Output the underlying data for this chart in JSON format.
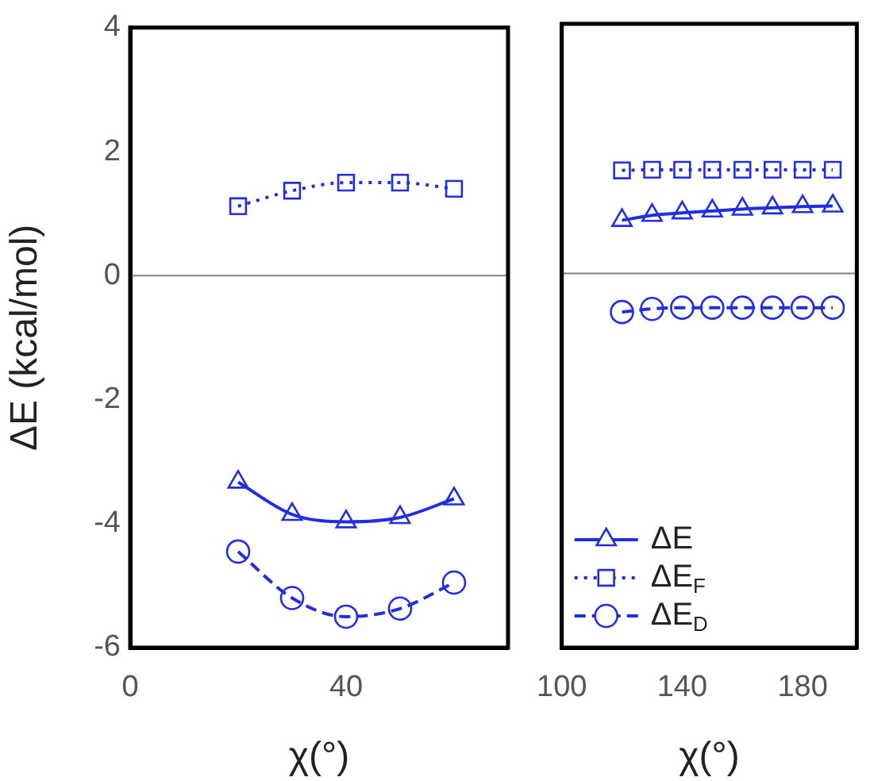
{
  "chart_data": [
    {
      "type": "line",
      "xlabel": "χ(°)",
      "ylabel": "ΔE (kcal/mol)",
      "x": [
        20,
        30,
        40,
        50,
        60
      ],
      "xlim": [
        0,
        70
      ],
      "xticks": [
        0,
        40
      ],
      "ylim": [
        -6,
        4
      ],
      "yticks": [
        -6,
        -4,
        -2,
        0,
        2,
        4
      ],
      "grid": false,
      "legend": false,
      "ref_lines": [
        {
          "axis": "y",
          "value": 0,
          "color": "#808080"
        }
      ],
      "series": [
        {
          "color": "#1f2ee0",
          "marker": "triangle",
          "line_style": "solid",
          "values": [
            -3.33,
            -3.85,
            -3.97,
            -3.9,
            -3.6
          ]
        },
        {
          "color": "#1f2ee0",
          "marker": "square",
          "line_style": "dotted",
          "values": [
            1.12,
            1.37,
            1.5,
            1.5,
            1.4
          ]
        },
        {
          "color": "#1f2ee0",
          "marker": "circle",
          "line_style": "dashed",
          "values": [
            -4.45,
            -5.2,
            -5.5,
            -5.37,
            -4.95
          ]
        }
      ]
    },
    {
      "type": "line",
      "xlabel": "χ(°)",
      "x": [
        120,
        130,
        140,
        150,
        160,
        170,
        180,
        190
      ],
      "xlim": [
        100,
        198
      ],
      "xticks": [
        100,
        140,
        180
      ],
      "ylim": [
        -6,
        4
      ],
      "yticks": [
        -6,
        -4,
        -2,
        0,
        2,
        4
      ],
      "tick_labels": "x",
      "grid": false,
      "legend": "bottom left",
      "ref_lines": [
        {
          "axis": "y",
          "value": 0,
          "color": "#808080"
        }
      ],
      "series": [
        {
          "name": "ΔE",
          "color": "#1f2ee0",
          "marker": "triangle",
          "line_style": "solid",
          "values": [
            0.85,
            0.93,
            0.97,
            1.0,
            1.03,
            1.05,
            1.07,
            1.08
          ]
        },
        {
          "name": "ΔE$_{F}$",
          "color": "#1f2ee0",
          "marker": "square",
          "line_style": "dotted",
          "values": [
            1.65,
            1.66,
            1.66,
            1.66,
            1.66,
            1.66,
            1.66,
            1.66
          ]
        },
        {
          "name": "ΔE$_{D}$",
          "color": "#1f2ee0",
          "marker": "circle",
          "line_style": "dashed",
          "values": [
            -0.62,
            -0.57,
            -0.55,
            -0.55,
            -0.55,
            -0.55,
            -0.55,
            -0.55
          ]
        }
      ]
    }
  ]
}
